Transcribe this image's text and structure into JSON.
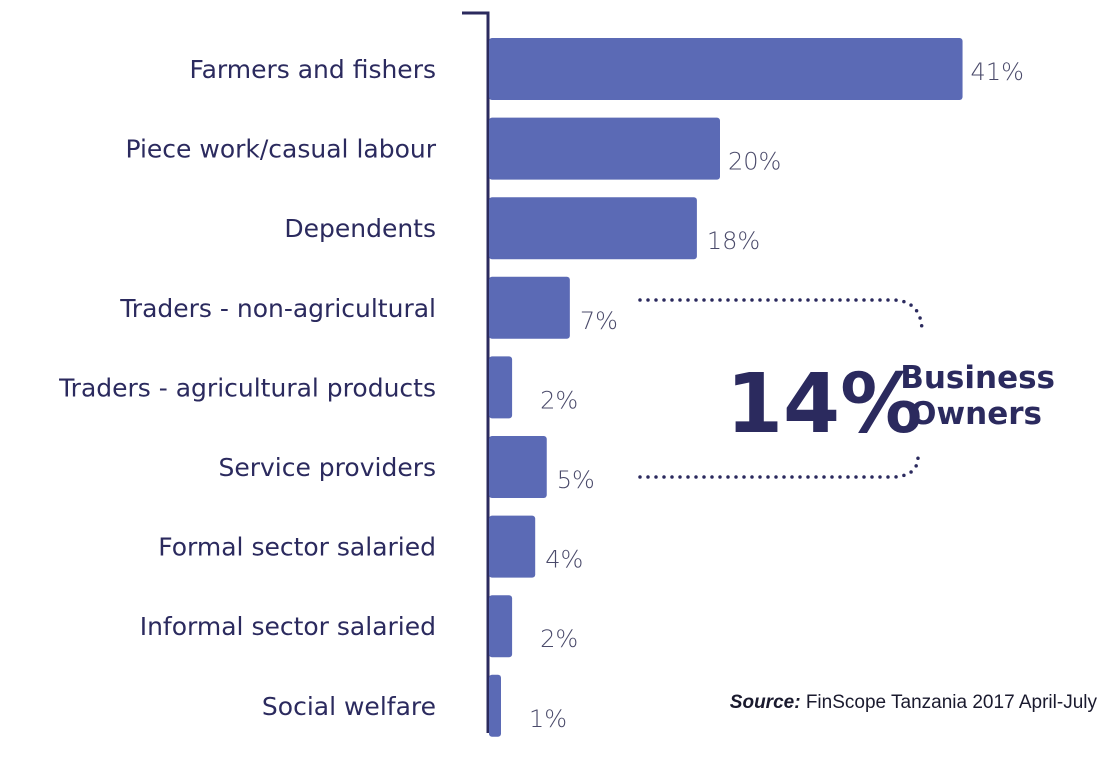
{
  "chart_data": {
    "type": "bar",
    "orientation": "horizontal",
    "categories": [
      "Farmers and fishers",
      "Piece work/casual labour",
      "Dependents",
      "Traders - non-agricultural",
      "Traders - agricultural products",
      "Service providers",
      "Formal sector salaried",
      "Informal sector salaried",
      "Social welfare"
    ],
    "values": [
      41,
      20,
      18,
      7,
      2,
      5,
      4,
      2,
      1
    ],
    "value_labels": [
      "41%",
      "20%",
      "18%",
      "7%",
      "2%",
      "5%",
      "4%",
      "2%",
      "1%"
    ],
    "unit": "%",
    "bar_color": "#5b6ab5",
    "text_color": "#2b2a5e",
    "annotation": {
      "value": "14%",
      "label_line1": "Business",
      "label_line2": "Owners",
      "bracketed_categories": [
        "Traders - non-agricultural",
        "Traders - agricultural products",
        "Service providers"
      ]
    },
    "source_prefix": "Source:",
    "source_text": "FinScope Tanzania 2017 April-July"
  }
}
